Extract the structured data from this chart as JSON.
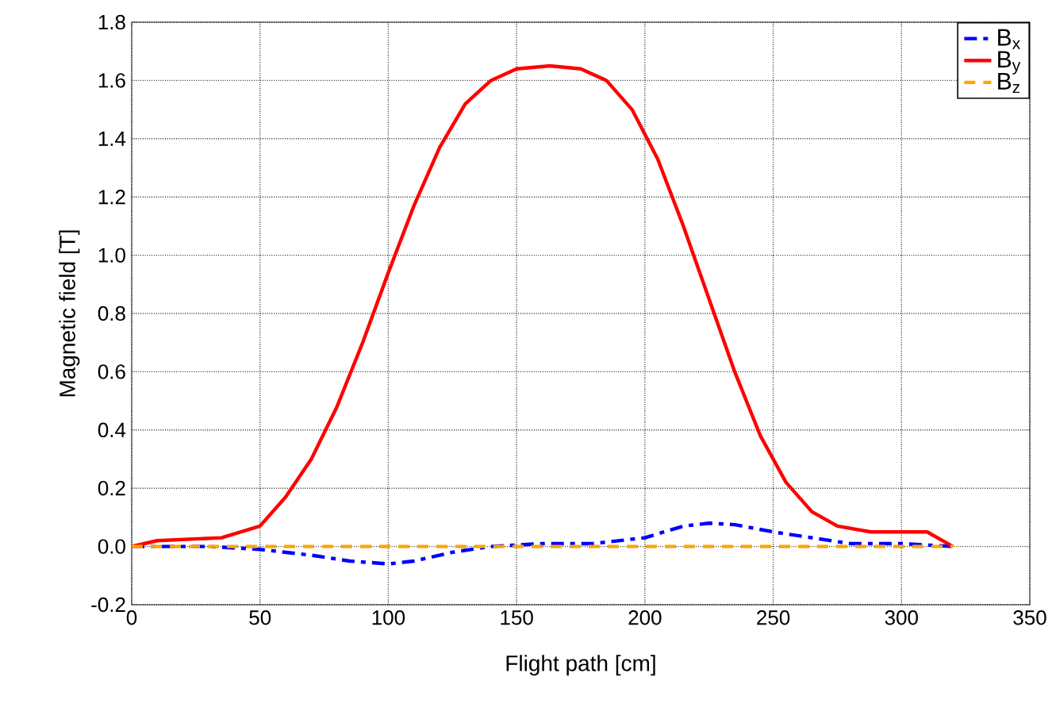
{
  "chart_data": {
    "type": "line",
    "xlabel": "Flight path [cm]",
    "ylabel": "Magnetic field [T]",
    "xlim": [
      0,
      350
    ],
    "ylim": [
      -0.2,
      1.8
    ],
    "xticks": [
      0,
      50,
      100,
      150,
      200,
      250,
      300,
      350
    ],
    "yticks": [
      {
        "value": -0.2,
        "label": "-0.2"
      },
      {
        "value": 0,
        "label": "0.0"
      },
      {
        "value": 0.2,
        "label": "0.2"
      },
      {
        "value": 0.4,
        "label": "0.4"
      },
      {
        "value": 0.6,
        "label": "0.6"
      },
      {
        "value": 0.8,
        "label": "0.8"
      },
      {
        "value": 1.0,
        "label": "1.0"
      },
      {
        "value": 1.2,
        "label": "1.2"
      },
      {
        "value": 1.4,
        "label": "1.4"
      },
      {
        "value": 1.6,
        "label": "1.6"
      },
      {
        "value": 1.8,
        "label": "1.8"
      }
    ],
    "grid": true,
    "legend": "top right",
    "marker": "none",
    "series": [
      {
        "name": "B$_{x}$",
        "color": "#0000ff",
        "line_style": "dashdot",
        "x": [
          0,
          30,
          50,
          70,
          85,
          100,
          110,
          125,
          140,
          160,
          180,
          200,
          215,
          225,
          235,
          250,
          265,
          280,
          300,
          320
        ],
        "values": [
          0,
          0,
          -0.01,
          -0.03,
          -0.05,
          -0.06,
          -0.05,
          -0.02,
          0,
          0.01,
          0.01,
          0.03,
          0.07,
          0.08,
          0.075,
          0.05,
          0.03,
          0.01,
          0.01,
          0
        ]
      },
      {
        "name": "B$_{y}$",
        "color": "#ff0000",
        "line_style": "solid",
        "x": [
          0,
          10,
          35,
          50,
          60,
          70,
          80,
          90,
          100,
          110,
          120,
          130,
          140,
          150,
          163,
          175,
          185,
          195,
          205,
          215,
          225,
          235,
          245,
          255,
          265,
          275,
          288,
          310,
          320
        ],
        "values": [
          0,
          0.02,
          0.03,
          0.07,
          0.17,
          0.3,
          0.48,
          0.7,
          0.94,
          1.17,
          1.37,
          1.52,
          1.6,
          1.64,
          1.65,
          1.64,
          1.6,
          1.5,
          1.33,
          1.1,
          0.85,
          0.6,
          0.38,
          0.22,
          0.12,
          0.07,
          0.05,
          0.05,
          0
        ]
      },
      {
        "name": "B$_{z}$",
        "color": "#ffa500",
        "line_style": "dashed",
        "x": [
          0,
          320
        ],
        "values": [
          0,
          0
        ]
      }
    ]
  }
}
